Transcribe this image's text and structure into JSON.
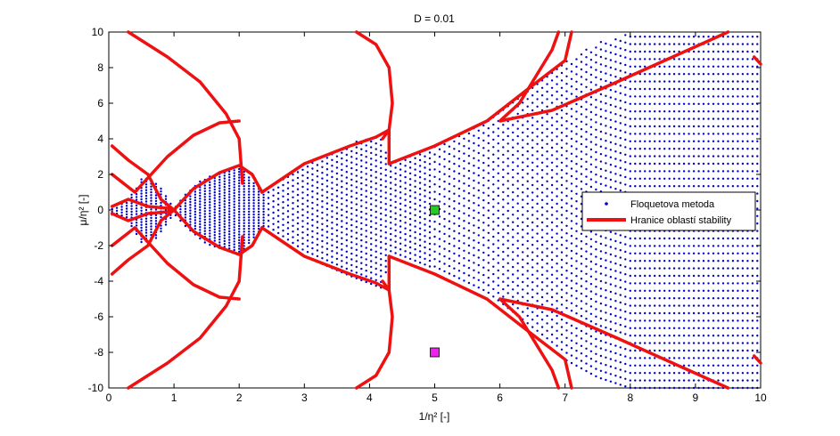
{
  "chart_data": {
    "type": "scatter",
    "title": "D = 0.01",
    "xlabel": "1/η² [-]",
    "ylabel": "μ/η² [-]",
    "xlim": [
      0,
      10
    ],
    "ylim": [
      -10,
      10
    ],
    "xticks": [
      0,
      1,
      2,
      3,
      4,
      5,
      6,
      7,
      8,
      9,
      10
    ],
    "yticks": [
      -10,
      -8,
      -6,
      -4,
      -2,
      0,
      2,
      4,
      6,
      8,
      10
    ],
    "grid": false,
    "legend_position": "right",
    "series": [
      {
        "name": "Floquetova metoda",
        "marker": "dot",
        "color": "#0000cc",
        "region_description": "Stable points fill the regions between the boundary curves",
        "sample_x_range": [
          0,
          10
        ],
        "sample_y_range": [
          -10,
          10
        ]
      },
      {
        "name": "Hranice oblastí stability",
        "marker": "line",
        "color": "#ee1111",
        "curves": [
          {
            "x": [
              0.05,
              0.3,
              0.6,
              0.9,
              1.0
            ],
            "y": [
              0.2,
              0.6,
              0.2,
              0.1,
              0.0
            ]
          },
          {
            "x": [
              0.05,
              0.3,
              0.6,
              0.9,
              1.0
            ],
            "y": [
              -0.2,
              -0.6,
              -0.2,
              -0.1,
              0.0
            ]
          },
          {
            "x": [
              0.05,
              0.3,
              0.6,
              0.8,
              1.0
            ],
            "y": [
              3.6,
              2.8,
              2.0,
              0.6,
              0.0
            ]
          },
          {
            "x": [
              0.05,
              0.3,
              0.6,
              0.8,
              1.0
            ],
            "y": [
              -3.6,
              -2.8,
              -2.0,
              -0.6,
              0.0
            ]
          },
          {
            "x": [
              1.0,
              1.3,
              1.7,
              2.0,
              2.2,
              2.35
            ],
            "y": [
              0.0,
              1.2,
              2.1,
              2.5,
              2.0,
              1.0
            ]
          },
          {
            "x": [
              1.0,
              1.3,
              1.7,
              2.0,
              2.2,
              2.35
            ],
            "y": [
              0.0,
              -1.2,
              -2.1,
              -2.5,
              -2.0,
              -1.0
            ]
          },
          {
            "x": [
              0.3,
              0.9,
              1.4,
              1.8,
              2.0,
              2.05
            ],
            "y": [
              10.0,
              8.6,
              7.2,
              5.4,
              4.0,
              1.5
            ]
          },
          {
            "x": [
              0.3,
              0.9,
              1.4,
              1.8,
              2.0,
              2.05
            ],
            "y": [
              -10.0,
              -8.6,
              -7.2,
              -5.4,
              -4.0,
              -1.5
            ]
          },
          {
            "x": [
              0.05,
              0.4,
              0.9,
              1.3,
              1.7,
              2.0
            ],
            "y": [
              2.0,
              1.0,
              3.0,
              4.2,
              4.9,
              5.0
            ]
          },
          {
            "x": [
              0.05,
              0.4,
              0.9,
              1.3,
              1.7,
              2.0
            ],
            "y": [
              -2.0,
              -1.0,
              -3.0,
              -4.2,
              -4.9,
              -5.0
            ]
          },
          {
            "x": [
              2.35,
              3.0,
              3.7,
              4.1,
              4.3,
              4.3
            ],
            "y": [
              1.0,
              2.6,
              3.6,
              4.1,
              4.5,
              2.6
            ]
          },
          {
            "x": [
              2.35,
              3.0,
              3.7,
              4.1,
              4.3,
              4.3
            ],
            "y": [
              -1.0,
              -2.6,
              -3.6,
              -4.1,
              -4.5,
              -2.6
            ]
          },
          {
            "x": [
              3.8,
              4.1,
              4.3,
              4.35,
              4.3,
              4.2
            ],
            "y": [
              10.0,
              9.3,
              8.0,
              6.0,
              4.5,
              4.0
            ]
          },
          {
            "x": [
              3.8,
              4.1,
              4.3,
              4.35,
              4.3,
              4.2
            ],
            "y": [
              -10.0,
              -9.3,
              -8.0,
              -6.0,
              -4.5,
              -4.0
            ]
          },
          {
            "x": [
              4.3,
              5.0,
              5.8,
              6.5,
              7.0,
              7.1
            ],
            "y": [
              2.6,
              3.6,
              5.0,
              7.0,
              8.4,
              10.0
            ]
          },
          {
            "x": [
              4.3,
              5.0,
              5.8,
              6.5,
              7.0,
              7.1
            ],
            "y": [
              -2.6,
              -3.6,
              -5.0,
              -7.0,
              -8.4,
              -10.0
            ]
          },
          {
            "x": [
              6.9,
              6.8,
              6.3,
              6.0,
              6.8,
              7.8,
              9.5
            ],
            "y": [
              10.0,
              9.0,
              6.0,
              5.0,
              5.6,
              7.2,
              10.0
            ]
          },
          {
            "x": [
              6.9,
              6.8,
              6.3,
              6.0,
              6.8,
              7.8,
              9.5
            ],
            "y": [
              -10.0,
              -9.0,
              -6.0,
              -5.0,
              -5.6,
              -7.2,
              -10.0
            ]
          },
          {
            "x": [
              9.9,
              10.0
            ],
            "y": [
              8.6,
              8.2
            ]
          },
          {
            "x": [
              9.9,
              10.0
            ],
            "y": [
              -8.2,
              -8.6
            ]
          }
        ]
      }
    ],
    "markers": [
      {
        "x": 5.0,
        "y": 0.0,
        "color": "#22cc22",
        "shape": "square"
      },
      {
        "x": 5.0,
        "y": -8.0,
        "color": "#ee22ee",
        "shape": "square"
      }
    ]
  }
}
